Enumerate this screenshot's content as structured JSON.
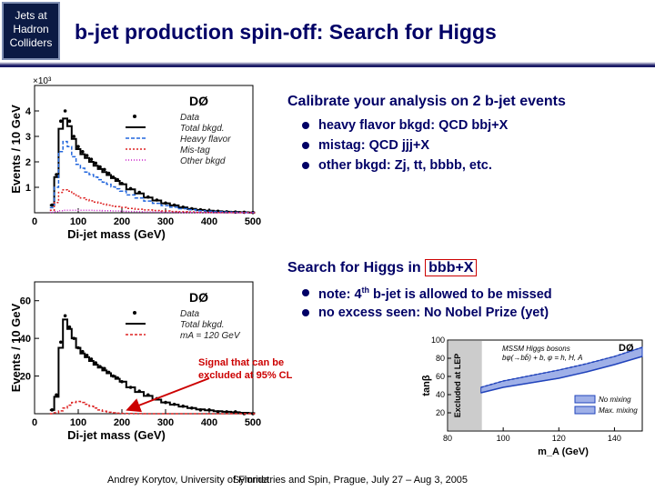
{
  "logo": {
    "lines": [
      "Jets at",
      "Hadron",
      "Colliders"
    ]
  },
  "slide": {
    "title": "b-jet production spin-off: Search for Higgs"
  },
  "section1": {
    "heading": "Calibrate your analysis on 2 b-jet events",
    "bullets": [
      "heavy flavor bkgd: QCD bbj+X",
      "mistag: QCD jjj+X",
      "other bkgd: Zj, tt, bbbb, etc."
    ]
  },
  "section2": {
    "heading_prefix": "Search for Higgs in ",
    "heading_boxed": "bbb+X",
    "bullet1_a": "note: 4",
    "bullet1_sup": "th",
    "bullet1_b": " b-jet is allowed to be missed",
    "bullet2": "no excess seen: No Nobel Prize (yet)"
  },
  "annotation": {
    "line1": "Signal that can be",
    "line2": "excluded at 95% CL"
  },
  "footer": {
    "left": "Andrey Korytov, University of Florida",
    "right": "Symmetries and Spin, Prague, July 27 – Aug 3, 2005"
  },
  "chart_data": [
    {
      "type": "line",
      "experiment": "DØ",
      "scale_label": "×10³",
      "xlabel": "Di-jet mass  (GeV)",
      "ylabel": "Events / 10 GeV",
      "xlim": [
        0,
        500
      ],
      "ylim": [
        0,
        5
      ],
      "xticks": [
        0,
        100,
        200,
        300,
        400,
        500
      ],
      "yticks": [
        1,
        2,
        3,
        4
      ],
      "legend": [
        "Data",
        "Total bkgd.",
        "Heavy flavor",
        "Mis-tag",
        "Other bkgd"
      ],
      "colors": {
        "data": "#000000",
        "total": "#000000",
        "heavy": "#2266dd",
        "mistag": "#dd2222",
        "other": "#cc22cc"
      },
      "x": [
        40,
        50,
        60,
        70,
        80,
        90,
        100,
        110,
        120,
        130,
        140,
        150,
        160,
        170,
        180,
        190,
        200,
        220,
        240,
        260,
        280,
        300,
        320,
        340,
        360,
        380,
        400,
        420,
        440,
        460,
        480,
        500
      ],
      "series": [
        {
          "values": [
            0.3,
            1.5,
            3.6,
            4.0,
            3.6,
            3.0,
            2.6,
            2.4,
            2.25,
            2.1,
            1.95,
            1.8,
            1.7,
            1.55,
            1.4,
            1.3,
            1.15,
            0.95,
            0.8,
            0.62,
            0.5,
            0.38,
            0.3,
            0.22,
            0.16,
            0.12,
            0.08,
            0.06,
            0.04,
            0.03,
            0.02,
            0.01
          ]
        },
        {
          "values": [
            0.3,
            1.4,
            3.3,
            3.7,
            3.4,
            2.9,
            2.5,
            2.3,
            2.15,
            2.0,
            1.85,
            1.72,
            1.6,
            1.48,
            1.36,
            1.25,
            1.12,
            0.92,
            0.76,
            0.6,
            0.48,
            0.37,
            0.29,
            0.21,
            0.15,
            0.11,
            0.08,
            0.06,
            0.04,
            0.03,
            0.02,
            0.01
          ]
        },
        {
          "values": [
            0.2,
            1.0,
            2.4,
            2.8,
            2.6,
            2.2,
            1.9,
            1.75,
            1.6,
            1.5,
            1.4,
            1.3,
            1.2,
            1.12,
            1.02,
            0.94,
            0.85,
            0.7,
            0.58,
            0.46,
            0.37,
            0.28,
            0.22,
            0.16,
            0.12,
            0.08,
            0.06,
            0.04,
            0.03,
            0.02,
            0.01,
            0.01
          ]
        },
        {
          "values": [
            0.1,
            0.4,
            0.8,
            0.9,
            0.85,
            0.75,
            0.65,
            0.58,
            0.52,
            0.47,
            0.42,
            0.38,
            0.34,
            0.3,
            0.27,
            0.24,
            0.21,
            0.17,
            0.14,
            0.11,
            0.09,
            0.07,
            0.05,
            0.04,
            0.03,
            0.02,
            0.015,
            0.01,
            0.01,
            0.005,
            0.005,
            0.0
          ]
        },
        {
          "values": [
            0.02,
            0.05,
            0.08,
            0.1,
            0.1,
            0.1,
            0.1,
            0.1,
            0.1,
            0.1,
            0.09,
            0.09,
            0.08,
            0.08,
            0.07,
            0.07,
            0.06,
            0.05,
            0.04,
            0.03,
            0.03,
            0.02,
            0.02,
            0.01,
            0.01,
            0.01,
            0.01,
            0.0,
            0.0,
            0.0,
            0.0,
            0.0
          ]
        }
      ]
    },
    {
      "type": "line",
      "experiment": "DØ",
      "xlabel": "Di-jet mass  (GeV)",
      "ylabel": "Events / 10 GeV",
      "xlim": [
        0,
        500
      ],
      "ylim": [
        0,
        70
      ],
      "xticks": [
        0,
        100,
        200,
        300,
        400,
        500
      ],
      "yticks": [
        20,
        40,
        60
      ],
      "legend": [
        "Data",
        "Total bkgd.",
        "mA = 120 GeV"
      ],
      "colors": {
        "data": "#000000",
        "total": "#000000",
        "signal": "#dd2222"
      },
      "x": [
        40,
        50,
        60,
        70,
        80,
        90,
        100,
        110,
        120,
        130,
        140,
        150,
        160,
        170,
        180,
        190,
        200,
        220,
        240,
        260,
        280,
        300,
        320,
        340,
        360,
        380,
        400,
        420,
        440,
        460,
        480,
        500
      ],
      "series": [
        {
          "values": [
            2,
            10,
            38,
            52,
            46,
            40,
            35,
            33,
            31,
            29,
            27,
            25,
            24,
            22,
            20,
            19,
            17,
            14,
            12,
            10,
            8,
            6,
            5,
            4,
            3,
            2,
            2,
            1,
            1,
            1,
            0,
            0
          ]
        },
        {
          "values": [
            2,
            9,
            35,
            50,
            45,
            40,
            35,
            32,
            30,
            28,
            26,
            24.5,
            23,
            21.5,
            20,
            18.5,
            17,
            14,
            11.5,
            9.5,
            7.5,
            6,
            4.8,
            3.8,
            3,
            2.3,
            1.8,
            1.3,
            1,
            0.8,
            0.5,
            0.3
          ]
        },
        {
          "values": [
            0,
            0.5,
            1.5,
            3,
            4.5,
            6,
            6.5,
            6,
            5,
            4,
            3,
            2,
            1.3,
            0.8,
            0.5,
            0.3,
            0.2,
            0.1,
            0.05,
            0,
            0,
            0,
            0,
            0,
            0,
            0,
            0,
            0,
            0,
            0,
            0,
            0
          ]
        }
      ]
    },
    {
      "type": "area",
      "experiment": "DØ",
      "title": "MSSM Higgs bosons",
      "subtitle": "bφ(→bb̄) + b, φ = h, H, A",
      "xlabel": "m_A  (GeV)",
      "ylabel": "tanβ",
      "side_label": "Excluded at LEP",
      "xlim": [
        80,
        150
      ],
      "ylim": [
        0,
        100
      ],
      "xticks": [
        80,
        100,
        120,
        140
      ],
      "yticks": [
        20,
        40,
        60,
        80,
        100
      ],
      "legend": [
        "No mixing",
        "Max. mixing"
      ],
      "colors": {
        "band": "#2244bb",
        "lep": "#cccccc"
      },
      "lep_limit_x": 92,
      "x": [
        92,
        100,
        110,
        120,
        130,
        140,
        150
      ],
      "series": [
        {
          "values": [
            42,
            48,
            53,
            58,
            65,
            73,
            82
          ]
        },
        {
          "values": [
            48,
            55,
            61,
            67,
            74,
            82,
            92
          ]
        }
      ]
    }
  ]
}
